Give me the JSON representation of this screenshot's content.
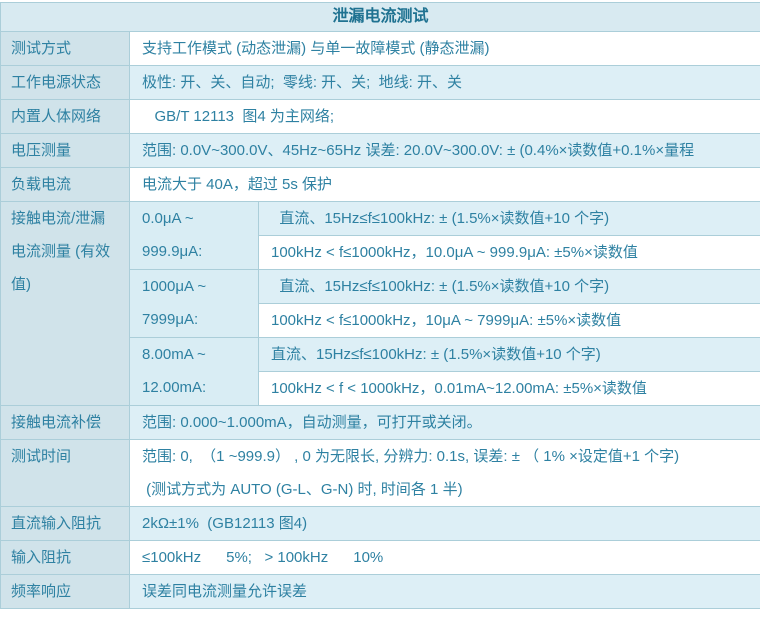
{
  "title": "泄漏电流测试",
  "colors": {
    "accent_text": "#2e81a2",
    "title_text": "#1f7291",
    "header_bg": "#d8eaf1",
    "label_col_bg": "#d0e3ea",
    "alt_row_bg": "#ddeff6",
    "range_cell_bg": "#d9edf4",
    "border": "#abced9"
  },
  "rows": {
    "test_mode": {
      "label": "测试方式",
      "value": "支持工作模式 (动态泄漏) 与单一故障模式 (静态泄漏)"
    },
    "power_state": {
      "label": "工作电源状态",
      "value": "极性: 开、关、自动;  零线: 开、关;  地线: 开、关"
    },
    "body_network": {
      "label": "内置人体网络",
      "value": "   GB/T 12113  图4 为主网络;"
    },
    "voltage": {
      "label": "电压测量",
      "value": "范围: 0.0V~300.0V、45Hz~65Hz 误差: 20.0V~300.0V: ± (0.4%×读数值+0.1%×量程"
    },
    "load_current": {
      "label": "负载电流",
      "value": "电流大于 40A，超过 5s 保护"
    },
    "touch_current": {
      "label": "接触电流/泄漏\n电流测量 (有效\n值)",
      "groups": [
        {
          "range": "0.0μA ~\n999.9μA:",
          "dc": "  直流、15Hz≤f≤100kHz: ± (1.5%×读数值+10 个字)",
          "hf": "100kHz < f≤1000kHz，10.0μA ~ 999.9μA: ±5%×读数值"
        },
        {
          "range": "1000μA ~\n7999μA:",
          "dc": "  直流、15Hz≤f≤100kHz: ± (1.5%×读数值+10 个字)",
          "hf": "100kHz < f≤1000kHz，10μA ~ 7999μA: ±5%×读数值"
        },
        {
          "range": "8.00mA ~\n12.00mA:",
          "dc": "直流、15Hz≤f≤100kHz: ± (1.5%×读数值+10 个字)",
          "hf": "100kHz < f < 1000kHz，0.01mA~12.00mA: ±5%×读数值"
        }
      ]
    },
    "compensation": {
      "label": "接触电流补偿",
      "value": "范围: 0.000~1.000mA，自动测量，可打开或关闭。"
    },
    "test_time": {
      "label": "测试时间",
      "value": "范围: 0,  （1 ~999.9） , 0 为无限长, 分辨力: 0.1s, 误差: ± （ 1% ×设定值+1 个字)\n (测试方式为 AUTO (G-L、G-N) 时, 时间各 1 半)"
    },
    "dc_impedance": {
      "label": "直流输入阻抗",
      "value": "2kΩ±1%  (GB12113 图4)"
    },
    "input_impedance": {
      "label": "输入阻抗",
      "value": "≤100kHz      5%;   > 100kHz      10%"
    },
    "freq_response": {
      "label": "频率响应",
      "value": "误差同电流测量允许误差"
    }
  }
}
